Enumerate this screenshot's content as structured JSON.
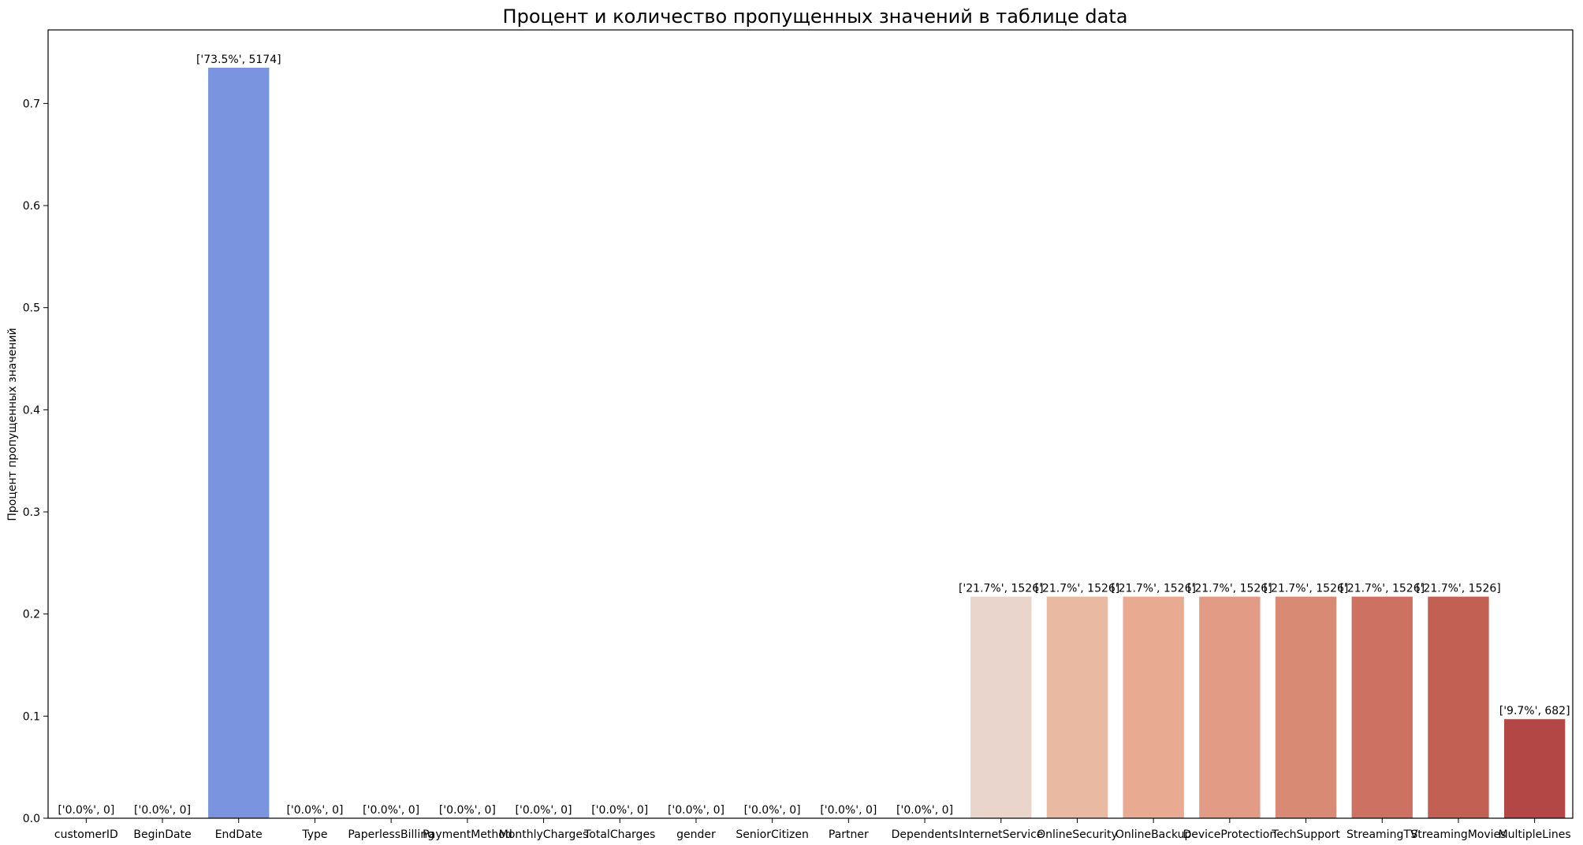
{
  "chart_data": {
    "type": "bar",
    "title": "Процент и количество пропущенных значений в таблице data",
    "xlabel": "",
    "ylabel": "Процент пропущенных значений",
    "ylim": [
      0,
      0.772
    ],
    "yticks": [
      "0.0",
      "0.1",
      "0.2",
      "0.3",
      "0.4",
      "0.5",
      "0.6",
      "0.7"
    ],
    "grid": false,
    "categories": [
      "customerID",
      "BeginDate",
      "EndDate",
      "Type",
      "PaperlessBilling",
      "PaymentMethod",
      "MonthlyCharges",
      "TotalCharges",
      "gender",
      "SeniorCitizen",
      "Partner",
      "Dependents",
      "InternetService",
      "OnlineSecurity",
      "OnlineBackup",
      "DeviceProtection",
      "TechSupport",
      "StreamingTV",
      "StreamingMovies",
      "MultipleLines"
    ],
    "values": [
      0,
      0,
      0.735,
      0,
      0,
      0,
      0,
      0,
      0,
      0,
      0,
      0,
      0.217,
      0.217,
      0.217,
      0.217,
      0.217,
      0.217,
      0.217,
      0.097
    ],
    "bar_labels": [
      "['0.0%', 0]",
      "['0.0%', 0]",
      "['73.5%', 5174]",
      "['0.0%', 0]",
      "['0.0%', 0]",
      "['0.0%', 0]",
      "['0.0%', 0]",
      "['0.0%', 0]",
      "['0.0%', 0]",
      "['0.0%', 0]",
      "['0.0%', 0]",
      "['0.0%', 0]",
      "['21.7%', 1526]",
      "['21.7%', 1526]",
      "['21.7%', 1526]",
      "['21.7%', 1526]",
      "['21.7%', 1526]",
      "['21.7%', 1526]",
      "['21.7%', 1526]",
      "['9.7%', 682]"
    ],
    "colors": [
      "#3b4cc0",
      "#4961d2",
      "#7a94df",
      "#8fb1fe",
      "#a5c3fe",
      "#bad0f8",
      "#cdd9ec",
      "#dddddd",
      "#ebd3c6",
      "#f2c8b4",
      "#f5b89d",
      "#f4a385",
      "#e9d5cb",
      "#eab9a2",
      "#e9aa92",
      "#e29c85",
      "#d98a74",
      "#cd7263",
      "#c26054",
      "#b24745"
    ],
    "legend": "none"
  }
}
